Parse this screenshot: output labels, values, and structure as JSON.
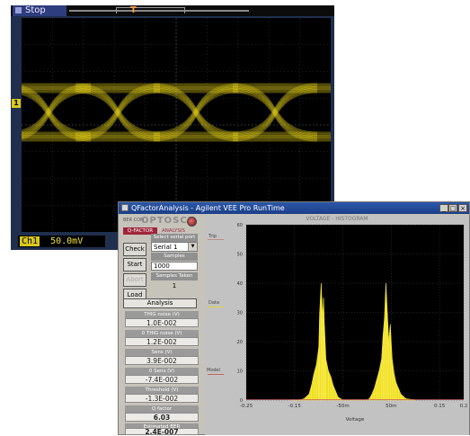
{
  "scope": {
    "status": "Stop",
    "trigger_symbol": "T",
    "channel_marker": "1",
    "channel_label": "Ch1",
    "scale": "50.0mV",
    "trace_color": "#e6d21a"
  },
  "window": {
    "title": "QFactorAnalysis - Agilent VEE Pro RunTime",
    "buttons": {
      "minimize": "_",
      "maximize": "□",
      "close": "×"
    }
  },
  "left_panel": {
    "ber_prefix": "BER COM",
    "brand": "OPTOSCI",
    "tabs": [
      "Q-FACTOR",
      "ANALYSIS"
    ],
    "buttons": [
      "Check",
      "Start",
      "Abort",
      "Load"
    ],
    "disabled_buttons": [
      "Abort"
    ],
    "select_port": {
      "title": "Select serial port",
      "value": "Serial 1"
    },
    "samples": {
      "title": "Samples",
      "value": "1000"
    },
    "samples_taken": {
      "title": "Samples Taken",
      "value": "1"
    },
    "analysis_header": "Analysis",
    "results": [
      {
        "title": "THIG noise (V)",
        "value": "1.0E-002"
      },
      {
        "title": "0 THIG noise (V)",
        "value": "1.2E-002"
      },
      {
        "title": "Sens (V)",
        "value": "3.9E-002"
      },
      {
        "title": "0 Sens (V)",
        "value": "-7.4E-002"
      },
      {
        "title": "Threshold (V)",
        "value": "-1.3E-002"
      },
      {
        "title": "Q factor",
        "value": "6.03"
      },
      {
        "title": "Estimated BER",
        "value": "2.4E-007"
      }
    ]
  },
  "histogram": {
    "title": "VOLTAGE - HISTOGRAM",
    "legend": [
      "Trip",
      "Data",
      "Model"
    ],
    "xlabel": "Voltage"
  },
  "chart_data": {
    "type": "area",
    "title": "VOLTAGE - HISTOGRAM",
    "xlabel": "Voltage",
    "ylabel": "",
    "x_tick_labels": [
      "-0.25",
      "-0.15",
      "-50m",
      "50m",
      "0.15",
      "0.2"
    ],
    "x_ticks": [
      -0.25,
      -0.15,
      -0.05,
      0.05,
      0.15,
      0.2
    ],
    "y_tick_labels": [
      "0",
      "10",
      "20",
      "30",
      "40",
      "50",
      "60"
    ],
    "xlim": [
      -0.25,
      0.2
    ],
    "ylim": [
      0,
      60
    ],
    "grid": true,
    "series": [
      {
        "name": "Data",
        "color": "#f0e020",
        "x": [
          -0.16,
          -0.14,
          -0.13,
          -0.12,
          -0.115,
          -0.11,
          -0.105,
          -0.1,
          -0.098,
          -0.095,
          -0.092,
          -0.09,
          -0.088,
          -0.085,
          -0.08,
          -0.075,
          -0.07,
          -0.065,
          -0.06,
          -0.05,
          0.0,
          0.005,
          0.01,
          0.015,
          0.02,
          0.025,
          0.03,
          0.033,
          0.036,
          0.039,
          0.042,
          0.045,
          0.048,
          0.052,
          0.056,
          0.06,
          0.065,
          0.07,
          0.08,
          0.1
        ],
        "values": [
          0,
          0,
          0.5,
          2,
          5,
          9,
          12,
          18,
          30,
          40,
          28,
          35,
          25,
          14,
          10,
          8,
          5,
          3,
          1,
          0,
          0,
          0.5,
          2,
          4,
          7,
          10,
          14,
          22,
          28,
          40,
          30,
          20,
          26,
          14,
          9,
          6,
          4,
          2,
          0.5,
          0
        ]
      }
    ]
  }
}
